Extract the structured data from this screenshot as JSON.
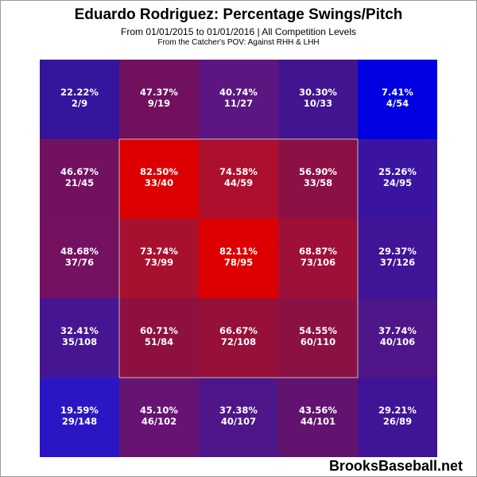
{
  "chart_data": {
    "type": "heatmap",
    "title": "Eduardo Rodriguez: Percentage Swings/Pitch",
    "subtitle": "From 01/01/2015 to 01/01/2016 | All Competition Levels",
    "subtitle2": "From the Catcher's POV:  Against RHH & LHH",
    "footer": "BrooksBaseball.net",
    "rows": 5,
    "cols": 5,
    "strike_zone": {
      "row_start": 1,
      "row_end": 3,
      "col_start": 1,
      "col_end": 3
    },
    "cells": [
      [
        {
          "pct": "22.22%",
          "count": "2/9",
          "color": "#34159c"
        },
        {
          "pct": "47.37%",
          "count": "9/19",
          "color": "#70105f"
        },
        {
          "pct": "40.74%",
          "count": "11/27",
          "color": "#5c1681"
        },
        {
          "pct": "30.30%",
          "count": "10/33",
          "color": "#43148f"
        },
        {
          "pct": "7.41%",
          "count": "4/54",
          "color": "#0000e1"
        }
      ],
      [
        {
          "pct": "46.67%",
          "count": "21/45",
          "color": "#72115f"
        },
        {
          "pct": "82.50%",
          "count": "33/40",
          "color": "#dc0000"
        },
        {
          "pct": "74.58%",
          "count": "44/59",
          "color": "#ad0f2e"
        },
        {
          "pct": "56.90%",
          "count": "33/58",
          "color": "#8b1045"
        },
        {
          "pct": "25.26%",
          "count": "24/95",
          "color": "#3a14a1"
        }
      ],
      [
        {
          "pct": "48.68%",
          "count": "37/76",
          "color": "#741160"
        },
        {
          "pct": "73.74%",
          "count": "73/99",
          "color": "#a8102f"
        },
        {
          "pct": "82.11%",
          "count": "78/95",
          "color": "#dd0000"
        },
        {
          "pct": "68.87%",
          "count": "73/106",
          "color": "#9e1038"
        },
        {
          "pct": "29.37%",
          "count": "37/126",
          "color": "#3f1497"
        }
      ],
      [
        {
          "pct": "32.41%",
          "count": "35/108",
          "color": "#461692"
        },
        {
          "pct": "60.71%",
          "count": "51/84",
          "color": "#8e1040"
        },
        {
          "pct": "66.67%",
          "count": "72/108",
          "color": "#961039"
        },
        {
          "pct": "54.55%",
          "count": "60/110",
          "color": "#8b1145"
        },
        {
          "pct": "37.74%",
          "count": "40/106",
          "color": "#4e1689"
        }
      ],
      [
        {
          "pct": "19.59%",
          "count": "29/148",
          "color": "#2a17c3"
        },
        {
          "pct": "45.10%",
          "count": "46/102",
          "color": "#671373"
        },
        {
          "pct": "37.38%",
          "count": "40/107",
          "color": "#4e1689"
        },
        {
          "pct": "43.56%",
          "count": "44/101",
          "color": "#62136f"
        },
        {
          "pct": "29.21%",
          "count": "26/89",
          "color": "#3f1497"
        }
      ]
    ]
  }
}
